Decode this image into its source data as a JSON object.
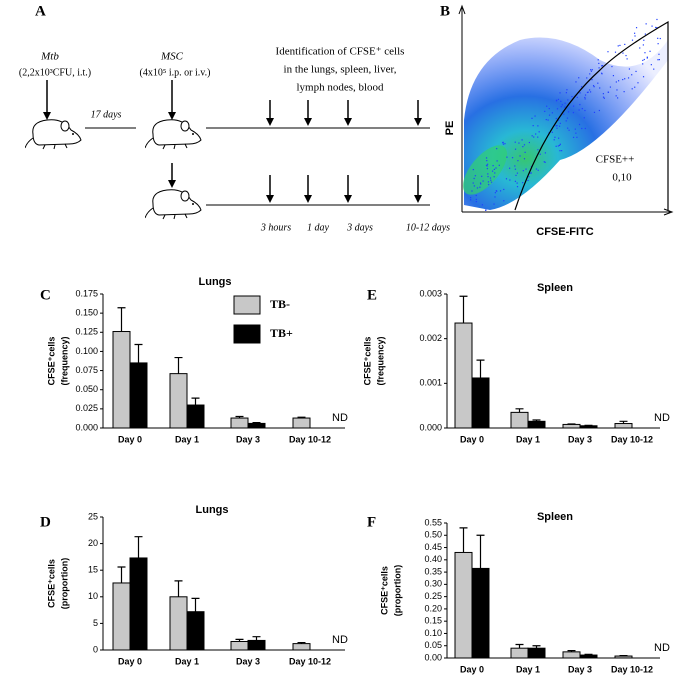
{
  "panel_a": {
    "label": "A",
    "mtb": "Mtb",
    "mtb_dose": "(2,2x10³CFU, i.t.)",
    "interval": "17 days",
    "msc": "MSC",
    "msc_dose": "(4x10⁵ i.p. or i.v.)",
    "identification": [
      "Identification of CFSE⁺ cells",
      "in the lungs, spleen, liver,",
      "lymph nodes, blood"
    ],
    "timepoints": [
      "3 hours",
      "1 day",
      "3 days",
      "10-12 days"
    ]
  },
  "panel_b": {
    "label": "B",
    "y_label": "PE",
    "x_label": "CFSE-FITC",
    "gate_label": "CFSE++",
    "gate_value": "0,10"
  },
  "chart_data": [
    {
      "type": "bar",
      "panel": "C",
      "title": "Lungs",
      "ylabel": [
        "CFSE⁺cells",
        "(frequency)"
      ],
      "categories": [
        "Day 0",
        "Day 1",
        "Day 3",
        "Day 10-12"
      ],
      "series": [
        {
          "name": "TB-",
          "color": "#c8c8c8",
          "values": [
            0.126,
            0.071,
            0.013,
            0.013
          ],
          "errors": [
            0.031,
            0.021,
            0.002,
            0.001
          ]
        },
        {
          "name": "TB+",
          "color": "#000000",
          "values": [
            0.085,
            0.03,
            0.006,
            null
          ],
          "errors": [
            0.024,
            0.009,
            0.001,
            null
          ]
        }
      ],
      "annotation": "ND",
      "ylim": [
        0,
        0.175
      ],
      "yticks": [
        {
          "value": 0,
          "label": "0.000"
        },
        0.025,
        {
          "value": 0.05,
          "label": "0.050"
        },
        0.075,
        {
          "value": 0.1,
          "label": "0.100"
        },
        0.125,
        {
          "value": 0.15,
          "label": "0.150"
        },
        0.175
      ],
      "legend": "upper center"
    },
    {
      "type": "bar",
      "panel": "D",
      "title": "Lungs",
      "ylabel": [
        "CFSE⁺cells",
        "(proportion)"
      ],
      "categories": [
        "Day 0",
        "Day 1",
        "Day 3",
        "Day 10-12"
      ],
      "series": [
        {
          "name": "TB-",
          "color": "#c8c8c8",
          "values": [
            12.6,
            10,
            1.6,
            1.2
          ],
          "errors": [
            3,
            3,
            0.4,
            0.2
          ]
        },
        {
          "name": "TB+",
          "color": "#000000",
          "values": [
            17.3,
            7.2,
            1.8,
            null
          ],
          "errors": [
            4,
            2.5,
            0.7,
            null
          ]
        }
      ],
      "annotation": "ND",
      "ylim": [
        0,
        25
      ],
      "yticks": [
        0,
        5,
        10,
        15,
        20,
        25
      ]
    },
    {
      "type": "bar",
      "panel": "E",
      "title": "Spleen",
      "ylabel": [
        "CFSE⁺cells",
        "(frequency)"
      ],
      "categories": [
        "Day 0",
        "Day 1",
        "Day 3",
        "Day 10-12"
      ],
      "series": [
        {
          "name": "TB-",
          "color": "#c8c8c8",
          "values": [
            0.00235,
            0.00035,
            8e-05,
            0.0001
          ],
          "errors": [
            0.0006,
            8e-05,
            1e-05,
            5e-05
          ]
        },
        {
          "name": "TB+",
          "color": "#000000",
          "values": [
            0.00112,
            0.00015,
            5e-05,
            null
          ],
          "errors": [
            0.0004,
            3e-05,
            1e-05,
            null
          ]
        }
      ],
      "annotation": "ND",
      "ylim": [
        0,
        0.003
      ],
      "yticks": [
        {
          "value": 0,
          "label": "0.000"
        },
        0.001,
        0.002,
        0.003
      ]
    },
    {
      "type": "bar",
      "panel": "F",
      "title": "Spleen",
      "ylabel": [
        "CFSE⁺cells",
        "(proportion)"
      ],
      "categories": [
        "Day 0",
        "Day 1",
        "Day 3",
        "Day 10-12"
      ],
      "series": [
        {
          "name": "TB-",
          "color": "#c8c8c8",
          "values": [
            0.43,
            0.04,
            0.025,
            0.008
          ],
          "errors": [
            0.1,
            0.015,
            0.005,
            0.002
          ]
        },
        {
          "name": "TB+",
          "color": "#000000",
          "values": [
            0.365,
            0.04,
            0.012,
            null
          ],
          "errors": [
            0.135,
            0.01,
            0.003,
            null
          ]
        }
      ],
      "annotation": "ND",
      "ylim": [
        0,
        0.55
      ],
      "yticks": [
        {
          "value": 0,
          "label": "0.00"
        },
        0.05,
        {
          "value": 0.1,
          "label": "0.10"
        },
        0.15,
        {
          "value": 0.2,
          "label": "0.20"
        },
        0.25,
        {
          "value": 0.3,
          "label": "0.30"
        },
        0.35,
        {
          "value": 0.4,
          "label": "0.40"
        },
        0.45,
        {
          "value": 0.5,
          "label": "0.50"
        },
        0.55
      ]
    }
  ]
}
